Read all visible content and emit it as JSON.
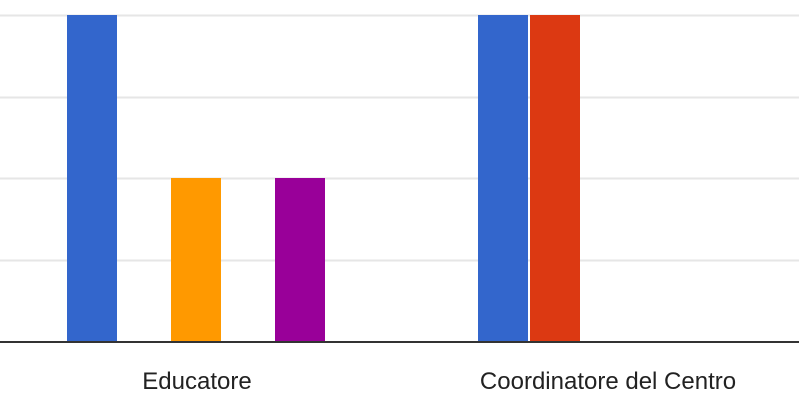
{
  "chart_data": {
    "type": "bar",
    "categories": [
      "Educatore",
      "Coordinatore del Centro"
    ],
    "series": [
      {
        "color": "#3366cc",
        "values": [
          2,
          2
        ]
      },
      {
        "color": "#dc3912",
        "values": [
          0,
          2
        ]
      },
      {
        "color": "#ff9900",
        "values": [
          1,
          0
        ]
      },
      {
        "color": "#109618",
        "values": [
          0,
          0
        ]
      },
      {
        "color": "#990099",
        "values": [
          1,
          0
        ]
      }
    ],
    "ylim": [
      0,
      2
    ],
    "grid": true,
    "gridline_color": "#e6e6e6",
    "baseline_color": "#333333",
    "title": "",
    "xlabel": "",
    "ylabel": ""
  }
}
